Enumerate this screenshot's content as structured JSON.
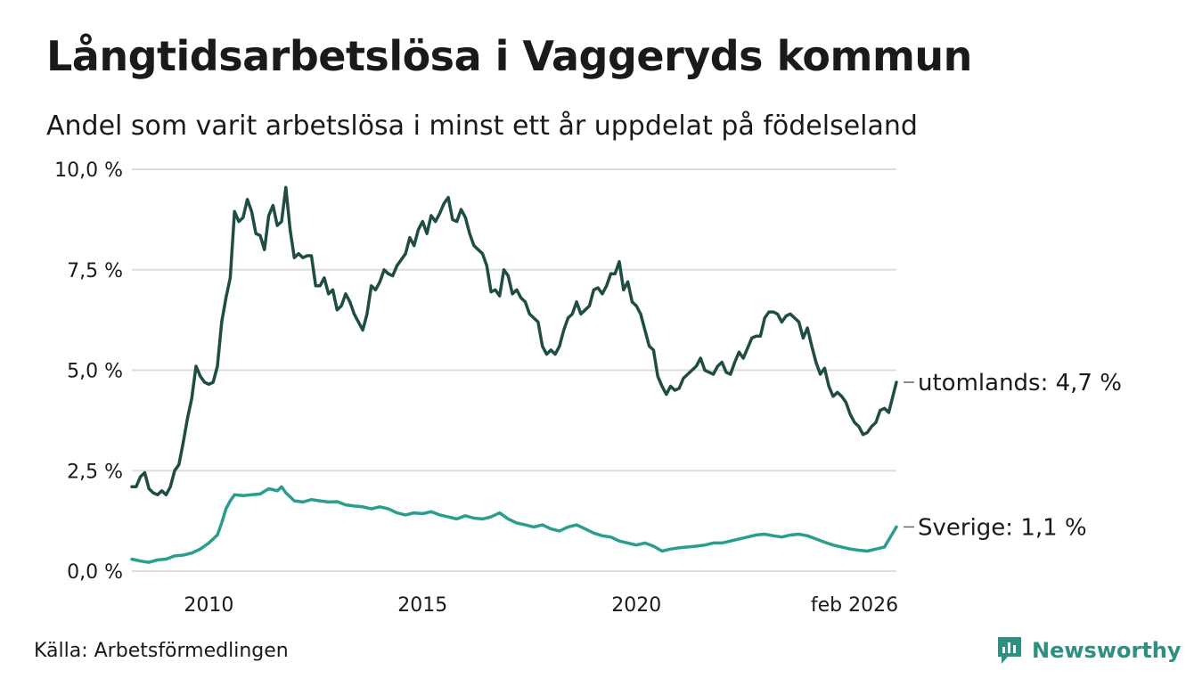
{
  "title": "Långtidsarbetslösa i Vaggeryds kommun",
  "subtitle": "Andel som varit arbetslösa i minst ett år uppdelat på födelseland",
  "source": "Källa: Arbetsförmedlingen",
  "brand": "Newsworthy",
  "colors": {
    "utomlands": "#1f4d45",
    "sverige": "#2a9d8f",
    "grid": "#dddddd",
    "brand": "#2f8f80"
  },
  "chart_data": {
    "type": "line",
    "title": "Långtidsarbetslösa i Vaggeryds kommun",
    "ylim": [
      0,
      10
    ],
    "xlim": [
      2008.2,
      2026.08
    ],
    "y_ticks": [
      {
        "value": 10,
        "label": "10,0 %"
      },
      {
        "value": 7.5,
        "label": "7,5 %"
      },
      {
        "value": 5,
        "label": "5,0 %"
      },
      {
        "value": 2.5,
        "label": "2,5 %"
      },
      {
        "value": 0,
        "label": "0,0 %"
      }
    ],
    "x_ticks": [
      {
        "value": 2010,
        "label": "2010"
      },
      {
        "value": 2015,
        "label": "2015"
      },
      {
        "value": 2020,
        "label": "2020"
      },
      {
        "value": 2025.1,
        "label": "feb 2026"
      }
    ],
    "series": [
      {
        "name": "utomlands",
        "label": "utomlands: 4,7 %",
        "color": "#1f4d45",
        "values": [
          [
            2008.2,
            2.1
          ],
          [
            2008.3,
            2.1
          ],
          [
            2008.4,
            2.35
          ],
          [
            2008.5,
            2.45
          ],
          [
            2008.6,
            2.05
          ],
          [
            2008.7,
            1.95
          ],
          [
            2008.8,
            1.9
          ],
          [
            2008.9,
            2.0
          ],
          [
            2009.0,
            1.9
          ],
          [
            2009.1,
            2.1
          ],
          [
            2009.2,
            2.5
          ],
          [
            2009.3,
            2.65
          ],
          [
            2009.4,
            3.2
          ],
          [
            2009.5,
            3.8
          ],
          [
            2009.6,
            4.3
          ],
          [
            2009.7,
            5.1
          ],
          [
            2009.8,
            4.85
          ],
          [
            2009.9,
            4.7
          ],
          [
            2010.0,
            4.65
          ],
          [
            2010.1,
            4.7
          ],
          [
            2010.2,
            5.1
          ],
          [
            2010.3,
            6.2
          ],
          [
            2010.4,
            6.8
          ],
          [
            2010.5,
            7.3
          ],
          [
            2010.6,
            8.95
          ],
          [
            2010.7,
            8.7
          ],
          [
            2010.8,
            8.8
          ],
          [
            2010.9,
            9.25
          ],
          [
            2011.0,
            8.95
          ],
          [
            2011.1,
            8.4
          ],
          [
            2011.2,
            8.35
          ],
          [
            2011.3,
            8.0
          ],
          [
            2011.4,
            8.85
          ],
          [
            2011.5,
            9.1
          ],
          [
            2011.6,
            8.6
          ],
          [
            2011.7,
            8.7
          ],
          [
            2011.8,
            9.55
          ],
          [
            2011.9,
            8.5
          ],
          [
            2012.0,
            7.8
          ],
          [
            2012.1,
            7.9
          ],
          [
            2012.2,
            7.8
          ],
          [
            2012.3,
            7.85
          ],
          [
            2012.4,
            7.85
          ],
          [
            2012.5,
            7.1
          ],
          [
            2012.6,
            7.1
          ],
          [
            2012.7,
            7.3
          ],
          [
            2012.8,
            6.9
          ],
          [
            2012.9,
            7.0
          ],
          [
            2013.0,
            6.5
          ],
          [
            2013.1,
            6.6
          ],
          [
            2013.2,
            6.9
          ],
          [
            2013.3,
            6.7
          ],
          [
            2013.4,
            6.4
          ],
          [
            2013.5,
            6.2
          ],
          [
            2013.6,
            6.0
          ],
          [
            2013.7,
            6.4
          ],
          [
            2013.8,
            7.1
          ],
          [
            2013.9,
            7.0
          ],
          [
            2014.0,
            7.2
          ],
          [
            2014.1,
            7.5
          ],
          [
            2014.2,
            7.4
          ],
          [
            2014.3,
            7.35
          ],
          [
            2014.4,
            7.6
          ],
          [
            2014.5,
            7.75
          ],
          [
            2014.6,
            7.9
          ],
          [
            2014.7,
            8.3
          ],
          [
            2014.8,
            8.1
          ],
          [
            2014.9,
            8.5
          ],
          [
            2015.0,
            8.7
          ],
          [
            2015.1,
            8.4
          ],
          [
            2015.2,
            8.85
          ],
          [
            2015.3,
            8.7
          ],
          [
            2015.4,
            8.9
          ],
          [
            2015.5,
            9.15
          ],
          [
            2015.6,
            9.3
          ],
          [
            2015.7,
            8.75
          ],
          [
            2015.8,
            8.7
          ],
          [
            2015.9,
            9.0
          ],
          [
            2016.0,
            8.8
          ],
          [
            2016.1,
            8.4
          ],
          [
            2016.2,
            8.1
          ],
          [
            2016.3,
            8.0
          ],
          [
            2016.4,
            7.9
          ],
          [
            2016.5,
            7.6
          ],
          [
            2016.6,
            6.95
          ],
          [
            2016.7,
            7.0
          ],
          [
            2016.8,
            6.85
          ],
          [
            2016.9,
            7.5
          ],
          [
            2017.0,
            7.35
          ],
          [
            2017.1,
            6.9
          ],
          [
            2017.2,
            7.0
          ],
          [
            2017.3,
            6.8
          ],
          [
            2017.4,
            6.7
          ],
          [
            2017.5,
            6.4
          ],
          [
            2017.6,
            6.3
          ],
          [
            2017.7,
            6.2
          ],
          [
            2017.8,
            5.6
          ],
          [
            2017.9,
            5.4
          ],
          [
            2018.0,
            5.5
          ],
          [
            2018.1,
            5.4
          ],
          [
            2018.2,
            5.6
          ],
          [
            2018.3,
            6.0
          ],
          [
            2018.4,
            6.3
          ],
          [
            2018.5,
            6.4
          ],
          [
            2018.6,
            6.7
          ],
          [
            2018.7,
            6.4
          ],
          [
            2018.8,
            6.5
          ],
          [
            2018.9,
            6.6
          ],
          [
            2019.0,
            7.0
          ],
          [
            2019.1,
            7.05
          ],
          [
            2019.2,
            6.9
          ],
          [
            2019.3,
            7.1
          ],
          [
            2019.4,
            7.4
          ],
          [
            2019.5,
            7.4
          ],
          [
            2019.6,
            7.7
          ],
          [
            2019.7,
            7.0
          ],
          [
            2019.8,
            7.2
          ],
          [
            2019.9,
            6.7
          ],
          [
            2020.0,
            6.6
          ],
          [
            2020.1,
            6.4
          ],
          [
            2020.2,
            6.0
          ],
          [
            2020.3,
            5.6
          ],
          [
            2020.4,
            5.5
          ],
          [
            2020.5,
            4.85
          ],
          [
            2020.6,
            4.6
          ],
          [
            2020.7,
            4.4
          ],
          [
            2020.8,
            4.6
          ],
          [
            2020.9,
            4.5
          ],
          [
            2021.0,
            4.55
          ],
          [
            2021.1,
            4.8
          ],
          [
            2021.2,
            4.9
          ],
          [
            2021.3,
            5.0
          ],
          [
            2021.4,
            5.1
          ],
          [
            2021.5,
            5.3
          ],
          [
            2021.6,
            5.0
          ],
          [
            2021.7,
            4.95
          ],
          [
            2021.8,
            4.9
          ],
          [
            2021.9,
            5.1
          ],
          [
            2022.0,
            5.2
          ],
          [
            2022.1,
            4.95
          ],
          [
            2022.2,
            4.9
          ],
          [
            2022.3,
            5.2
          ],
          [
            2022.4,
            5.45
          ],
          [
            2022.5,
            5.3
          ],
          [
            2022.6,
            5.55
          ],
          [
            2022.7,
            5.8
          ],
          [
            2022.8,
            5.85
          ],
          [
            2022.9,
            5.85
          ],
          [
            2023.0,
            6.3
          ],
          [
            2023.1,
            6.45
          ],
          [
            2023.2,
            6.45
          ],
          [
            2023.3,
            6.4
          ],
          [
            2023.4,
            6.2
          ],
          [
            2023.5,
            6.35
          ],
          [
            2023.6,
            6.4
          ],
          [
            2023.7,
            6.3
          ],
          [
            2023.8,
            6.2
          ],
          [
            2023.9,
            5.8
          ],
          [
            2024.0,
            6.05
          ],
          [
            2024.1,
            5.6
          ],
          [
            2024.2,
            5.2
          ],
          [
            2024.3,
            4.9
          ],
          [
            2024.4,
            5.05
          ],
          [
            2024.5,
            4.6
          ],
          [
            2024.6,
            4.35
          ],
          [
            2024.7,
            4.45
          ],
          [
            2024.8,
            4.35
          ],
          [
            2024.9,
            4.2
          ],
          [
            2025.0,
            3.9
          ],
          [
            2025.1,
            3.7
          ],
          [
            2025.2,
            3.6
          ],
          [
            2025.3,
            3.4
          ],
          [
            2025.4,
            3.45
          ],
          [
            2025.5,
            3.6
          ],
          [
            2025.6,
            3.7
          ],
          [
            2025.7,
            4.0
          ],
          [
            2025.8,
            4.05
          ],
          [
            2025.9,
            3.95
          ],
          [
            2026.08,
            4.7
          ]
        ]
      },
      {
        "name": "sverige",
        "label": "Sverige: 1,1 %",
        "color": "#2a9d8f",
        "values": [
          [
            2008.2,
            0.3
          ],
          [
            2008.4,
            0.25
          ],
          [
            2008.6,
            0.22
          ],
          [
            2008.8,
            0.28
          ],
          [
            2009.0,
            0.3
          ],
          [
            2009.2,
            0.38
          ],
          [
            2009.4,
            0.4
          ],
          [
            2009.6,
            0.45
          ],
          [
            2009.8,
            0.55
          ],
          [
            2010.0,
            0.7
          ],
          [
            2010.2,
            0.9
          ],
          [
            2010.3,
            1.2
          ],
          [
            2010.4,
            1.55
          ],
          [
            2010.5,
            1.75
          ],
          [
            2010.6,
            1.9
          ],
          [
            2010.8,
            1.88
          ],
          [
            2011.0,
            1.9
          ],
          [
            2011.2,
            1.92
          ],
          [
            2011.4,
            2.05
          ],
          [
            2011.6,
            2.0
          ],
          [
            2011.7,
            2.1
          ],
          [
            2011.8,
            1.95
          ],
          [
            2011.9,
            1.85
          ],
          [
            2012.0,
            1.75
          ],
          [
            2012.2,
            1.72
          ],
          [
            2012.4,
            1.78
          ],
          [
            2012.6,
            1.75
          ],
          [
            2012.8,
            1.72
          ],
          [
            2013.0,
            1.73
          ],
          [
            2013.2,
            1.65
          ],
          [
            2013.4,
            1.62
          ],
          [
            2013.6,
            1.6
          ],
          [
            2013.8,
            1.55
          ],
          [
            2014.0,
            1.6
          ],
          [
            2014.2,
            1.55
          ],
          [
            2014.4,
            1.45
          ],
          [
            2014.6,
            1.4
          ],
          [
            2014.8,
            1.45
          ],
          [
            2015.0,
            1.43
          ],
          [
            2015.2,
            1.48
          ],
          [
            2015.4,
            1.4
          ],
          [
            2015.6,
            1.35
          ],
          [
            2015.8,
            1.3
          ],
          [
            2016.0,
            1.38
          ],
          [
            2016.2,
            1.32
          ],
          [
            2016.4,
            1.3
          ],
          [
            2016.6,
            1.35
          ],
          [
            2016.8,
            1.45
          ],
          [
            2017.0,
            1.3
          ],
          [
            2017.2,
            1.2
          ],
          [
            2017.4,
            1.15
          ],
          [
            2017.6,
            1.1
          ],
          [
            2017.8,
            1.15
          ],
          [
            2018.0,
            1.05
          ],
          [
            2018.2,
            1.0
          ],
          [
            2018.4,
            1.1
          ],
          [
            2018.6,
            1.15
          ],
          [
            2018.8,
            1.05
          ],
          [
            2019.0,
            0.95
          ],
          [
            2019.2,
            0.88
          ],
          [
            2019.4,
            0.85
          ],
          [
            2019.6,
            0.75
          ],
          [
            2019.8,
            0.7
          ],
          [
            2020.0,
            0.65
          ],
          [
            2020.2,
            0.7
          ],
          [
            2020.4,
            0.62
          ],
          [
            2020.6,
            0.5
          ],
          [
            2020.8,
            0.55
          ],
          [
            2021.0,
            0.58
          ],
          [
            2021.2,
            0.6
          ],
          [
            2021.4,
            0.62
          ],
          [
            2021.6,
            0.65
          ],
          [
            2021.8,
            0.7
          ],
          [
            2022.0,
            0.7
          ],
          [
            2022.2,
            0.75
          ],
          [
            2022.4,
            0.8
          ],
          [
            2022.6,
            0.85
          ],
          [
            2022.8,
            0.9
          ],
          [
            2023.0,
            0.92
          ],
          [
            2023.2,
            0.88
          ],
          [
            2023.4,
            0.85
          ],
          [
            2023.6,
            0.9
          ],
          [
            2023.8,
            0.92
          ],
          [
            2024.0,
            0.88
          ],
          [
            2024.2,
            0.8
          ],
          [
            2024.4,
            0.72
          ],
          [
            2024.6,
            0.65
          ],
          [
            2024.8,
            0.6
          ],
          [
            2025.0,
            0.55
          ],
          [
            2025.2,
            0.52
          ],
          [
            2025.4,
            0.5
          ],
          [
            2025.6,
            0.55
          ],
          [
            2025.8,
            0.6
          ],
          [
            2026.08,
            1.1
          ]
        ]
      }
    ]
  }
}
